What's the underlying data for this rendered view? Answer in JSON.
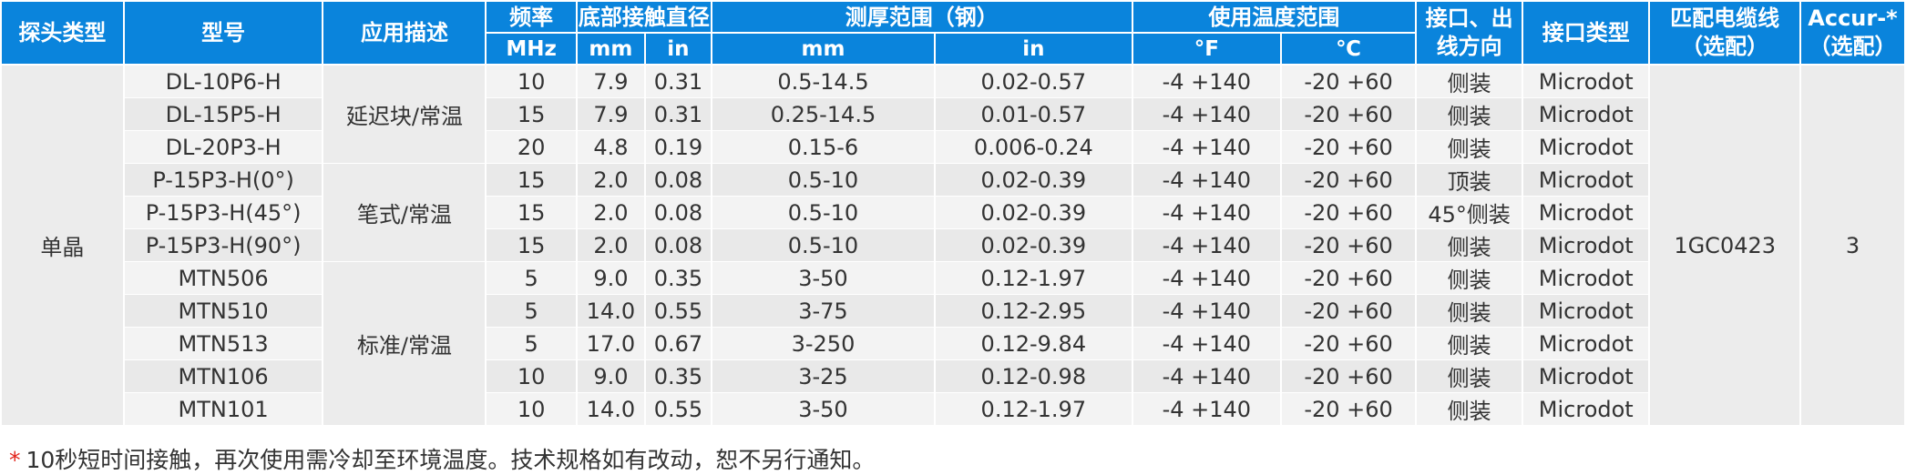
{
  "colors": {
    "header_bg": "#0a84dc",
    "header_text": "#ffffff",
    "row_light": "#f3f3f3",
    "row_dark": "#e9e9e9",
    "footnote_star": "#e2231a"
  },
  "headers": {
    "probe_type": "探头类型",
    "model": "型号",
    "application": "应用描述",
    "frequency": "频率",
    "frequency_unit": "MHz",
    "contact_dia": "底部接触直径",
    "contact_mm": "mm",
    "contact_in": "in",
    "thickness": "测厚范围（钢）",
    "thickness_mm": "mm",
    "thickness_in": "in",
    "temp": "使用温度范围",
    "temp_f": "°F",
    "temp_c": "℃",
    "interface_line1": "接口、出",
    "interface_line2": "线方向",
    "connector": "接口类型",
    "cable_line1": "匹配电缆线",
    "cable_line2": "（选配）",
    "accur_line1": "Accur-*",
    "accur_line2": "（选配）"
  },
  "probe_type": "单晶",
  "cable": "1GC0423",
  "accur": "3",
  "groups": [
    "延迟块/常温",
    "笔式/常温",
    "标准/常温"
  ],
  "rows": [
    {
      "model": "DL-10P6-H",
      "freq": "10",
      "mm": "7.9",
      "in": "0.31",
      "t_mm": "0.5-14.5",
      "t_in": "0.02-0.57",
      "temp_f": "-4  +140",
      "temp_c": "-20 +60",
      "dir": "侧装",
      "conn": "Microdot"
    },
    {
      "model": "DL-15P5-H",
      "freq": "15",
      "mm": "7.9",
      "in": "0.31",
      "t_mm": "0.25-14.5",
      "t_in": "0.01-0.57",
      "temp_f": "-4  +140",
      "temp_c": "-20 +60",
      "dir": "侧装",
      "conn": "Microdot"
    },
    {
      "model": "DL-20P3-H",
      "freq": "20",
      "mm": "4.8",
      "in": "0.19",
      "t_mm": "0.15-6",
      "t_in": "0.006-0.24",
      "temp_f": "-4  +140",
      "temp_c": "-20 +60",
      "dir": "侧装",
      "conn": "Microdot"
    },
    {
      "model": "P-15P3-H(0°)",
      "freq": "15",
      "mm": "2.0",
      "in": "0.08",
      "t_mm": "0.5-10",
      "t_in": "0.02-0.39",
      "temp_f": "-4  +140",
      "temp_c": "-20 +60",
      "dir": "顶装",
      "conn": "Microdot"
    },
    {
      "model": "P-15P3-H(45°)",
      "freq": "15",
      "mm": "2.0",
      "in": "0.08",
      "t_mm": "0.5-10",
      "t_in": "0.02-0.39",
      "temp_f": "-4  +140",
      "temp_c": "-20 +60",
      "dir": "45°侧装",
      "conn": "Microdot"
    },
    {
      "model": "P-15P3-H(90°)",
      "freq": "15",
      "mm": "2.0",
      "in": "0.08",
      "t_mm": "0.5-10",
      "t_in": "0.02-0.39",
      "temp_f": "-4  +140",
      "temp_c": "-20 +60",
      "dir": "侧装",
      "conn": "Microdot"
    },
    {
      "model": "MTN506",
      "freq": "5",
      "mm": "9.0",
      "in": "0.35",
      "t_mm": "3-50",
      "t_in": "0.12-1.97",
      "temp_f": "-4  +140",
      "temp_c": "-20 +60",
      "dir": "侧装",
      "conn": "Microdot"
    },
    {
      "model": "MTN510",
      "freq": "5",
      "mm": "14.0",
      "in": "0.55",
      "t_mm": "3-75",
      "t_in": "0.12-2.95",
      "temp_f": "-4  +140",
      "temp_c": "-20 +60",
      "dir": "侧装",
      "conn": "Microdot"
    },
    {
      "model": "MTN513",
      "freq": "5",
      "mm": "17.0",
      "in": "0.67",
      "t_mm": "3-250",
      "t_in": "0.12-9.84",
      "temp_f": "-4  +140",
      "temp_c": "-20 +60",
      "dir": "侧装",
      "conn": "Microdot"
    },
    {
      "model": "MTN106",
      "freq": "10",
      "mm": "9.0",
      "in": "0.35",
      "t_mm": "3-25",
      "t_in": "0.12-0.98",
      "temp_f": "-4  +140",
      "temp_c": "-20 +60",
      "dir": "侧装",
      "conn": "Microdot"
    },
    {
      "model": "MTN101",
      "freq": "10",
      "mm": "14.0",
      "in": "0.55",
      "t_mm": "3-50",
      "t_in": "0.12-1.97",
      "temp_f": "-4  +140",
      "temp_c": "-20 +60",
      "dir": "侧装",
      "conn": "Microdot"
    }
  ],
  "footnote": {
    "star": "*",
    "text": "10秒短时间接触，再次使用需冷却至环境温度。技术规格如有改动，恕不另行通知。"
  }
}
